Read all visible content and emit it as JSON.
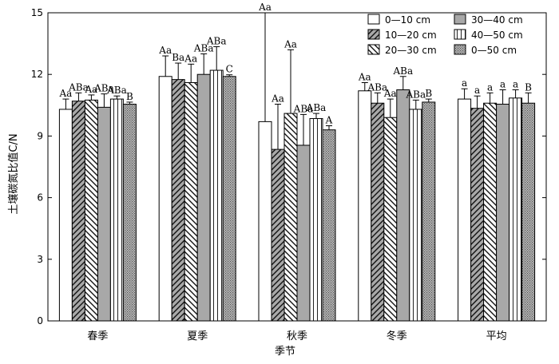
{
  "chart_data": {
    "type": "bar",
    "xlabel": "季节",
    "ylabel": "土壤碳氮比值C/N",
    "ylim": [
      0,
      15
    ],
    "yticks": [
      0,
      3,
      6,
      9,
      12,
      15
    ],
    "categories": [
      "春季",
      "夏季",
      "秋季",
      "冬季",
      "平均"
    ],
    "legend_position": "top-right",
    "series": [
      {
        "name": "0—10 cm",
        "pattern": "white",
        "values": [
          10.3,
          11.9,
          9.7,
          11.2,
          10.8
        ],
        "errors": [
          0.5,
          1.0,
          5.3,
          0.4,
          0.5
        ],
        "labels": [
          "Aa",
          "Aa",
          "Aa",
          "Aa",
          "a"
        ]
      },
      {
        "name": "10—20 cm",
        "pattern": "diag-right",
        "values": [
          10.7,
          11.75,
          8.35,
          10.6,
          10.35
        ],
        "errors": [
          0.4,
          0.8,
          2.2,
          0.5,
          0.6
        ],
        "labels": [
          "ABa",
          "Ba",
          "Aa",
          "ABa",
          "a"
        ]
      },
      {
        "name": "20—30 cm",
        "pattern": "diag-left",
        "values": [
          10.75,
          11.6,
          10.1,
          9.9,
          10.6
        ],
        "errors": [
          0.25,
          0.9,
          3.1,
          0.9,
          0.5
        ],
        "labels": [
          "Aa",
          "Aa",
          "Aa",
          "Aa",
          "a"
        ]
      },
      {
        "name": "30—40 cm",
        "pattern": "gray",
        "values": [
          10.4,
          12.0,
          8.55,
          11.25,
          10.55
        ],
        "errors": [
          0.65,
          1.0,
          1.5,
          0.65,
          0.7
        ],
        "labels": [
          "ABa",
          "ABa",
          "ABa",
          "ABa",
          "a"
        ]
      },
      {
        "name": "40—50 cm",
        "pattern": "vlines",
        "values": [
          10.8,
          12.2,
          9.85,
          10.3,
          10.85
        ],
        "errors": [
          0.15,
          1.15,
          0.25,
          0.45,
          0.4
        ],
        "labels": [
          "ABa",
          "ABa",
          "ABa",
          "ABa",
          "a"
        ]
      },
      {
        "name": "0—50 cm",
        "pattern": "dots",
        "values": [
          10.55,
          11.9,
          9.3,
          10.65,
          10.6
        ],
        "errors": [
          0.1,
          0.08,
          0.2,
          0.15,
          0.5
        ],
        "labels": [
          "B",
          "C",
          "A",
          "B",
          "B"
        ]
      }
    ]
  }
}
